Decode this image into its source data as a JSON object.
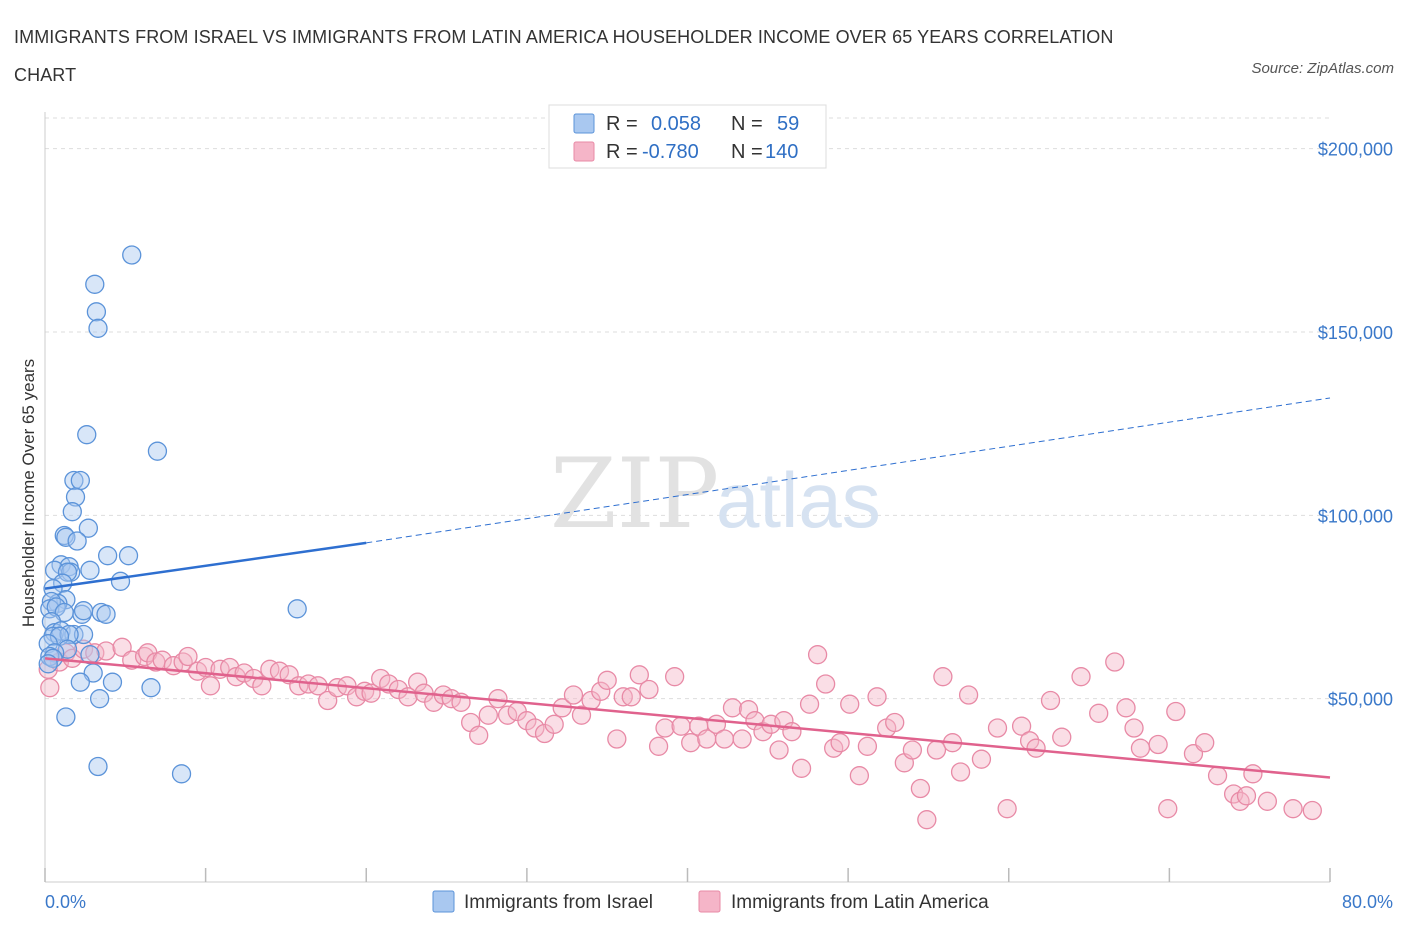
{
  "title": "IMMIGRANTS FROM ISRAEL VS IMMIGRANTS FROM LATIN AMERICA HOUSEHOLDER INCOME OVER 65 YEARS CORRELATION CHART",
  "source": "Source: ZipAtlas.com",
  "watermark": {
    "zip": "ZIP",
    "atlas": "atlas"
  },
  "legend": {
    "rows": [
      {
        "r_label": "R =",
        "r_value": "0.058",
        "n_label": "N =",
        "n_value": "59",
        "color": "#a9c8f0"
      },
      {
        "r_label": "R =",
        "r_value": "-0.780",
        "n_label": "N =",
        "n_value": "140",
        "color": "#f5b5c8"
      }
    ]
  },
  "colors": {
    "israel_fill": "#a9c8f0",
    "israel_stroke": "#5b93d9",
    "israel_line": "#2e6fd0",
    "latam_fill": "#f5b5c8",
    "latam_stroke": "#e88aa6",
    "latam_line": "#e0628d",
    "tick": "#3a78c9",
    "grid": "#dddddd"
  },
  "chart_data": {
    "type": "scatter",
    "title": "IMMIGRANTS FROM ISRAEL VS IMMIGRANTS FROM LATIN AMERICA HOUSEHOLDER INCOME OVER 65 YEARS CORRELATION CHART",
    "xlabel": "",
    "ylabel": "Householder Income Over 65 years",
    "xlim": [
      0,
      80
    ],
    "ylim": [
      0,
      210000
    ],
    "x_tick_labels": [
      "0.0%",
      "80.0%"
    ],
    "y_ticks": [
      50000,
      100000,
      150000,
      200000
    ],
    "y_tick_labels": [
      "$50,000",
      "$100,000",
      "$150,000",
      "$200,000"
    ],
    "grid": true,
    "legend_position": "top-center",
    "series": [
      {
        "name": "Immigrants from Israel",
        "trend": {
          "x0": 0,
          "y0": 80000,
          "x1": 20,
          "y1": 92500,
          "dashed_to_x": 80,
          "dashed_to_y": 132000
        },
        "points": [
          [
            5.4,
            171000
          ],
          [
            3.1,
            163000
          ],
          [
            3.2,
            155500
          ],
          [
            3.3,
            151000
          ],
          [
            2.6,
            122000
          ],
          [
            7.0,
            117500
          ],
          [
            1.8,
            109500
          ],
          [
            2.2,
            109500
          ],
          [
            1.9,
            105000
          ],
          [
            1.7,
            101000
          ],
          [
            2.7,
            96500
          ],
          [
            1.2,
            94500
          ],
          [
            1.3,
            94000
          ],
          [
            2.0,
            93000
          ],
          [
            3.9,
            89000
          ],
          [
            5.2,
            89000
          ],
          [
            1.0,
            86500
          ],
          [
            1.5,
            86000
          ],
          [
            0.6,
            85000
          ],
          [
            1.6,
            84500
          ],
          [
            2.8,
            85000
          ],
          [
            1.4,
            84500
          ],
          [
            4.7,
            82000
          ],
          [
            1.1,
            81500
          ],
          [
            0.5,
            80000
          ],
          [
            1.3,
            77000
          ],
          [
            0.8,
            76000
          ],
          [
            0.4,
            76500
          ],
          [
            0.3,
            74500
          ],
          [
            0.7,
            75000
          ],
          [
            1.2,
            73500
          ],
          [
            2.3,
            73000
          ],
          [
            3.5,
            73500
          ],
          [
            2.4,
            74000
          ],
          [
            3.8,
            73000
          ],
          [
            15.7,
            74500
          ],
          [
            0.4,
            71000
          ],
          [
            0.6,
            68000
          ],
          [
            1.0,
            68500
          ],
          [
            1.8,
            67500
          ],
          [
            2.4,
            67500
          ],
          [
            0.5,
            67000
          ],
          [
            1.5,
            67500
          ],
          [
            0.9,
            67000
          ],
          [
            0.2,
            65000
          ],
          [
            1.4,
            63500
          ],
          [
            0.6,
            62500
          ],
          [
            2.8,
            62000
          ],
          [
            0.3,
            61500
          ],
          [
            0.5,
            61000
          ],
          [
            0.2,
            59500
          ],
          [
            3.0,
            57000
          ],
          [
            2.2,
            54500
          ],
          [
            4.2,
            54500
          ],
          [
            6.6,
            53000
          ],
          [
            3.4,
            50000
          ],
          [
            1.3,
            45000
          ],
          [
            3.3,
            31500
          ],
          [
            8.5,
            29500
          ]
        ]
      },
      {
        "name": "Immigrants from Latin America",
        "trend": {
          "x0": 0,
          "y0": 61000,
          "x1": 80,
          "y1": 28500
        },
        "points": [
          [
            0.2,
            58000
          ],
          [
            0.3,
            53000
          ],
          [
            0.9,
            60000
          ],
          [
            1.3,
            62500
          ],
          [
            1.7,
            61000
          ],
          [
            2.4,
            63500
          ],
          [
            3.1,
            62500
          ],
          [
            3.8,
            63000
          ],
          [
            4.8,
            64000
          ],
          [
            5.4,
            60500
          ],
          [
            6.2,
            61500
          ],
          [
            6.4,
            62500
          ],
          [
            6.9,
            60000
          ],
          [
            7.3,
            60500
          ],
          [
            8.0,
            59000
          ],
          [
            8.6,
            60000
          ],
          [
            8.9,
            61500
          ],
          [
            9.5,
            57500
          ],
          [
            10.0,
            58500
          ],
          [
            10.3,
            53500
          ],
          [
            10.9,
            58000
          ],
          [
            11.5,
            58500
          ],
          [
            11.9,
            56000
          ],
          [
            12.4,
            57000
          ],
          [
            13.0,
            55500
          ],
          [
            13.5,
            53500
          ],
          [
            14.0,
            58000
          ],
          [
            14.6,
            57500
          ],
          [
            15.2,
            56500
          ],
          [
            15.8,
            53500
          ],
          [
            16.4,
            54000
          ],
          [
            17.0,
            53500
          ],
          [
            17.6,
            49500
          ],
          [
            18.2,
            53000
          ],
          [
            18.8,
            53500
          ],
          [
            19.4,
            50500
          ],
          [
            19.9,
            52000
          ],
          [
            20.3,
            51500
          ],
          [
            20.9,
            55500
          ],
          [
            21.4,
            54000
          ],
          [
            22.0,
            52500
          ],
          [
            22.6,
            50500
          ],
          [
            23.2,
            54500
          ],
          [
            23.6,
            51500
          ],
          [
            24.2,
            49000
          ],
          [
            24.8,
            51000
          ],
          [
            25.3,
            50000
          ],
          [
            25.9,
            49000
          ],
          [
            26.5,
            43500
          ],
          [
            27.0,
            40000
          ],
          [
            27.6,
            45500
          ],
          [
            28.2,
            50000
          ],
          [
            28.8,
            45500
          ],
          [
            29.4,
            46500
          ],
          [
            30.0,
            44000
          ],
          [
            30.5,
            42000
          ],
          [
            31.1,
            40500
          ],
          [
            31.7,
            43000
          ],
          [
            32.2,
            47500
          ],
          [
            32.9,
            51000
          ],
          [
            33.4,
            45500
          ],
          [
            34.0,
            49500
          ],
          [
            34.6,
            52000
          ],
          [
            35.0,
            55000
          ],
          [
            35.6,
            39000
          ],
          [
            36.0,
            50500
          ],
          [
            36.5,
            50500
          ],
          [
            37.0,
            56500
          ],
          [
            37.6,
            52500
          ],
          [
            38.2,
            37000
          ],
          [
            38.6,
            42000
          ],
          [
            39.2,
            56000
          ],
          [
            39.6,
            42500
          ],
          [
            40.2,
            38000
          ],
          [
            40.7,
            42500
          ],
          [
            41.2,
            39000
          ],
          [
            41.8,
            43000
          ],
          [
            42.3,
            39000
          ],
          [
            42.8,
            47500
          ],
          [
            43.4,
            39000
          ],
          [
            43.8,
            47000
          ],
          [
            44.2,
            44000
          ],
          [
            44.7,
            41000
          ],
          [
            45.2,
            43000
          ],
          [
            45.7,
            36000
          ],
          [
            46.0,
            44000
          ],
          [
            46.5,
            41000
          ],
          [
            47.1,
            31000
          ],
          [
            47.6,
            48500
          ],
          [
            48.1,
            62000
          ],
          [
            48.6,
            54000
          ],
          [
            49.1,
            36500
          ],
          [
            49.5,
            38000
          ],
          [
            50.1,
            48500
          ],
          [
            50.7,
            29000
          ],
          [
            51.2,
            37000
          ],
          [
            51.8,
            50500
          ],
          [
            52.4,
            42000
          ],
          [
            52.9,
            43500
          ],
          [
            53.5,
            32500
          ],
          [
            54.0,
            36000
          ],
          [
            54.5,
            25500
          ],
          [
            54.9,
            17000
          ],
          [
            55.5,
            36000
          ],
          [
            55.9,
            56000
          ],
          [
            56.5,
            38000
          ],
          [
            57.0,
            30000
          ],
          [
            57.5,
            51000
          ],
          [
            58.3,
            33500
          ],
          [
            59.3,
            42000
          ],
          [
            59.9,
            20000
          ],
          [
            60.8,
            42500
          ],
          [
            61.3,
            38500
          ],
          [
            61.7,
            36500
          ],
          [
            62.6,
            49500
          ],
          [
            63.3,
            39500
          ],
          [
            64.5,
            56000
          ],
          [
            65.6,
            46000
          ],
          [
            66.6,
            60000
          ],
          [
            67.3,
            47500
          ],
          [
            67.8,
            42000
          ],
          [
            68.2,
            36500
          ],
          [
            69.3,
            37500
          ],
          [
            69.9,
            20000
          ],
          [
            70.4,
            46500
          ],
          [
            71.5,
            35000
          ],
          [
            72.2,
            38000
          ],
          [
            73.0,
            29000
          ],
          [
            74.0,
            24000
          ],
          [
            74.4,
            22000
          ],
          [
            74.8,
            23500
          ],
          [
            75.2,
            29500
          ],
          [
            76.1,
            22000
          ],
          [
            77.7,
            20000
          ],
          [
            78.9,
            19500
          ]
        ]
      }
    ]
  },
  "bottom_legend": {
    "items": [
      "Immigrants from Israel",
      "Immigrants from Latin America"
    ]
  }
}
